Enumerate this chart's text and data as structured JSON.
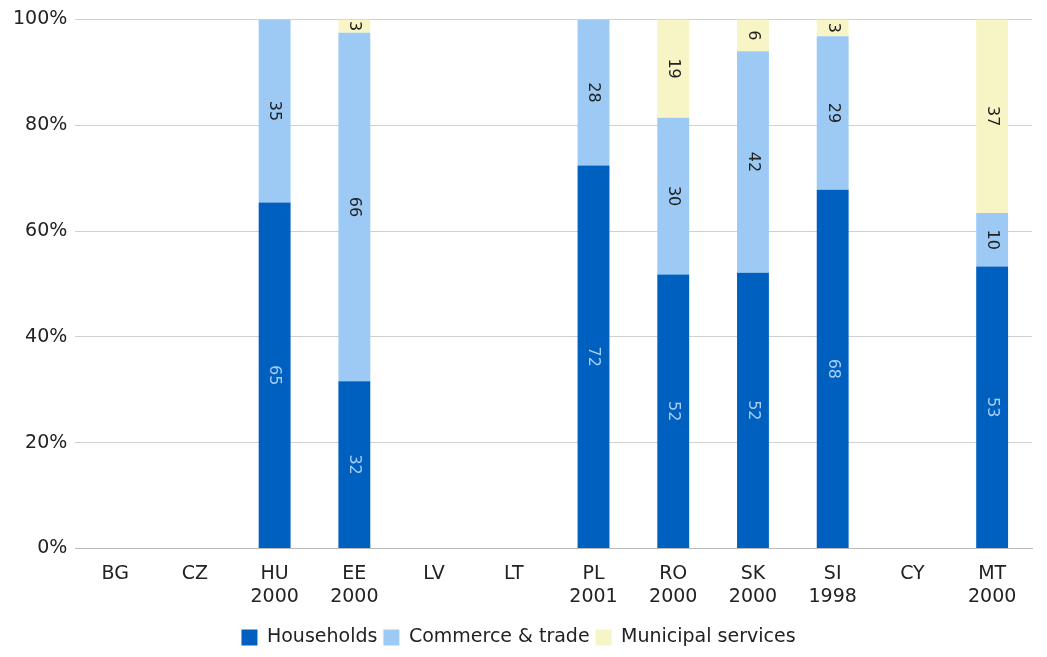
{
  "chart_data": {
    "type": "bar",
    "stacked": true,
    "categories": [
      "BG",
      "CZ",
      "HU\n2000",
      "EE\n2000",
      "LV",
      "LT",
      "PL\n2001",
      "RO\n2000",
      "SK\n2000",
      "SI\n1998",
      "CY",
      "MT\n2000"
    ],
    "series": [
      {
        "name": "Households",
        "color": "#0060c0",
        "values": [
          null,
          null,
          65.4,
          31.6,
          null,
          null,
          72.4,
          51.8,
          52.1,
          67.8,
          null,
          53.3
        ],
        "value_labels": [
          null,
          null,
          "65",
          "32",
          null,
          null,
          "72",
          "52",
          "52",
          "68",
          null,
          "53"
        ]
      },
      {
        "name": "Commerce & trade",
        "color": "#9ccaf5",
        "values": [
          null,
          null,
          34.6,
          65.9,
          null,
          null,
          27.6,
          29.6,
          41.9,
          29.0,
          null,
          10.1
        ],
        "value_labels": [
          null,
          null,
          "35",
          "66",
          null,
          null,
          "28",
          "30",
          "42",
          "29",
          null,
          "10"
        ]
      },
      {
        "name": "Municipal services",
        "color": "#f7f5c5",
        "values": [
          null,
          null,
          null,
          2.5,
          null,
          null,
          null,
          18.6,
          6.0,
          3.2,
          null,
          36.6
        ],
        "value_labels": [
          null,
          null,
          null,
          "3",
          null,
          null,
          null,
          "19",
          "6",
          "3",
          null,
          "37"
        ]
      }
    ],
    "ylim": [
      0,
      100
    ],
    "yticks": [
      {
        "value": 0,
        "label": "0%"
      },
      {
        "value": 20,
        "label": "20%"
      },
      {
        "value": 40,
        "label": "40%"
      },
      {
        "value": 60,
        "label": "60%"
      },
      {
        "value": 80,
        "label": "80%"
      },
      {
        "value": 100,
        "label": "100%"
      }
    ],
    "grid": "y",
    "legend": "bottom"
  }
}
